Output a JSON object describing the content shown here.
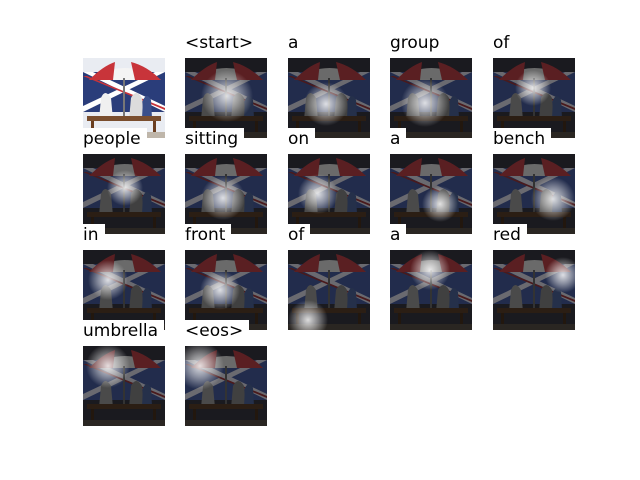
{
  "tokens": [
    "<start>",
    "a",
    "group",
    "of",
    "people",
    "sitting",
    "on",
    "a",
    "bench",
    "in",
    "front",
    "of",
    "a",
    "red",
    "umbrella",
    "<eos>"
  ],
  "colors": {
    "umbrella_red": "#c8343a",
    "umbrella_white": "#f4f4f4",
    "flag_blue": "#2a3d7a",
    "background": "#ffffff"
  }
}
